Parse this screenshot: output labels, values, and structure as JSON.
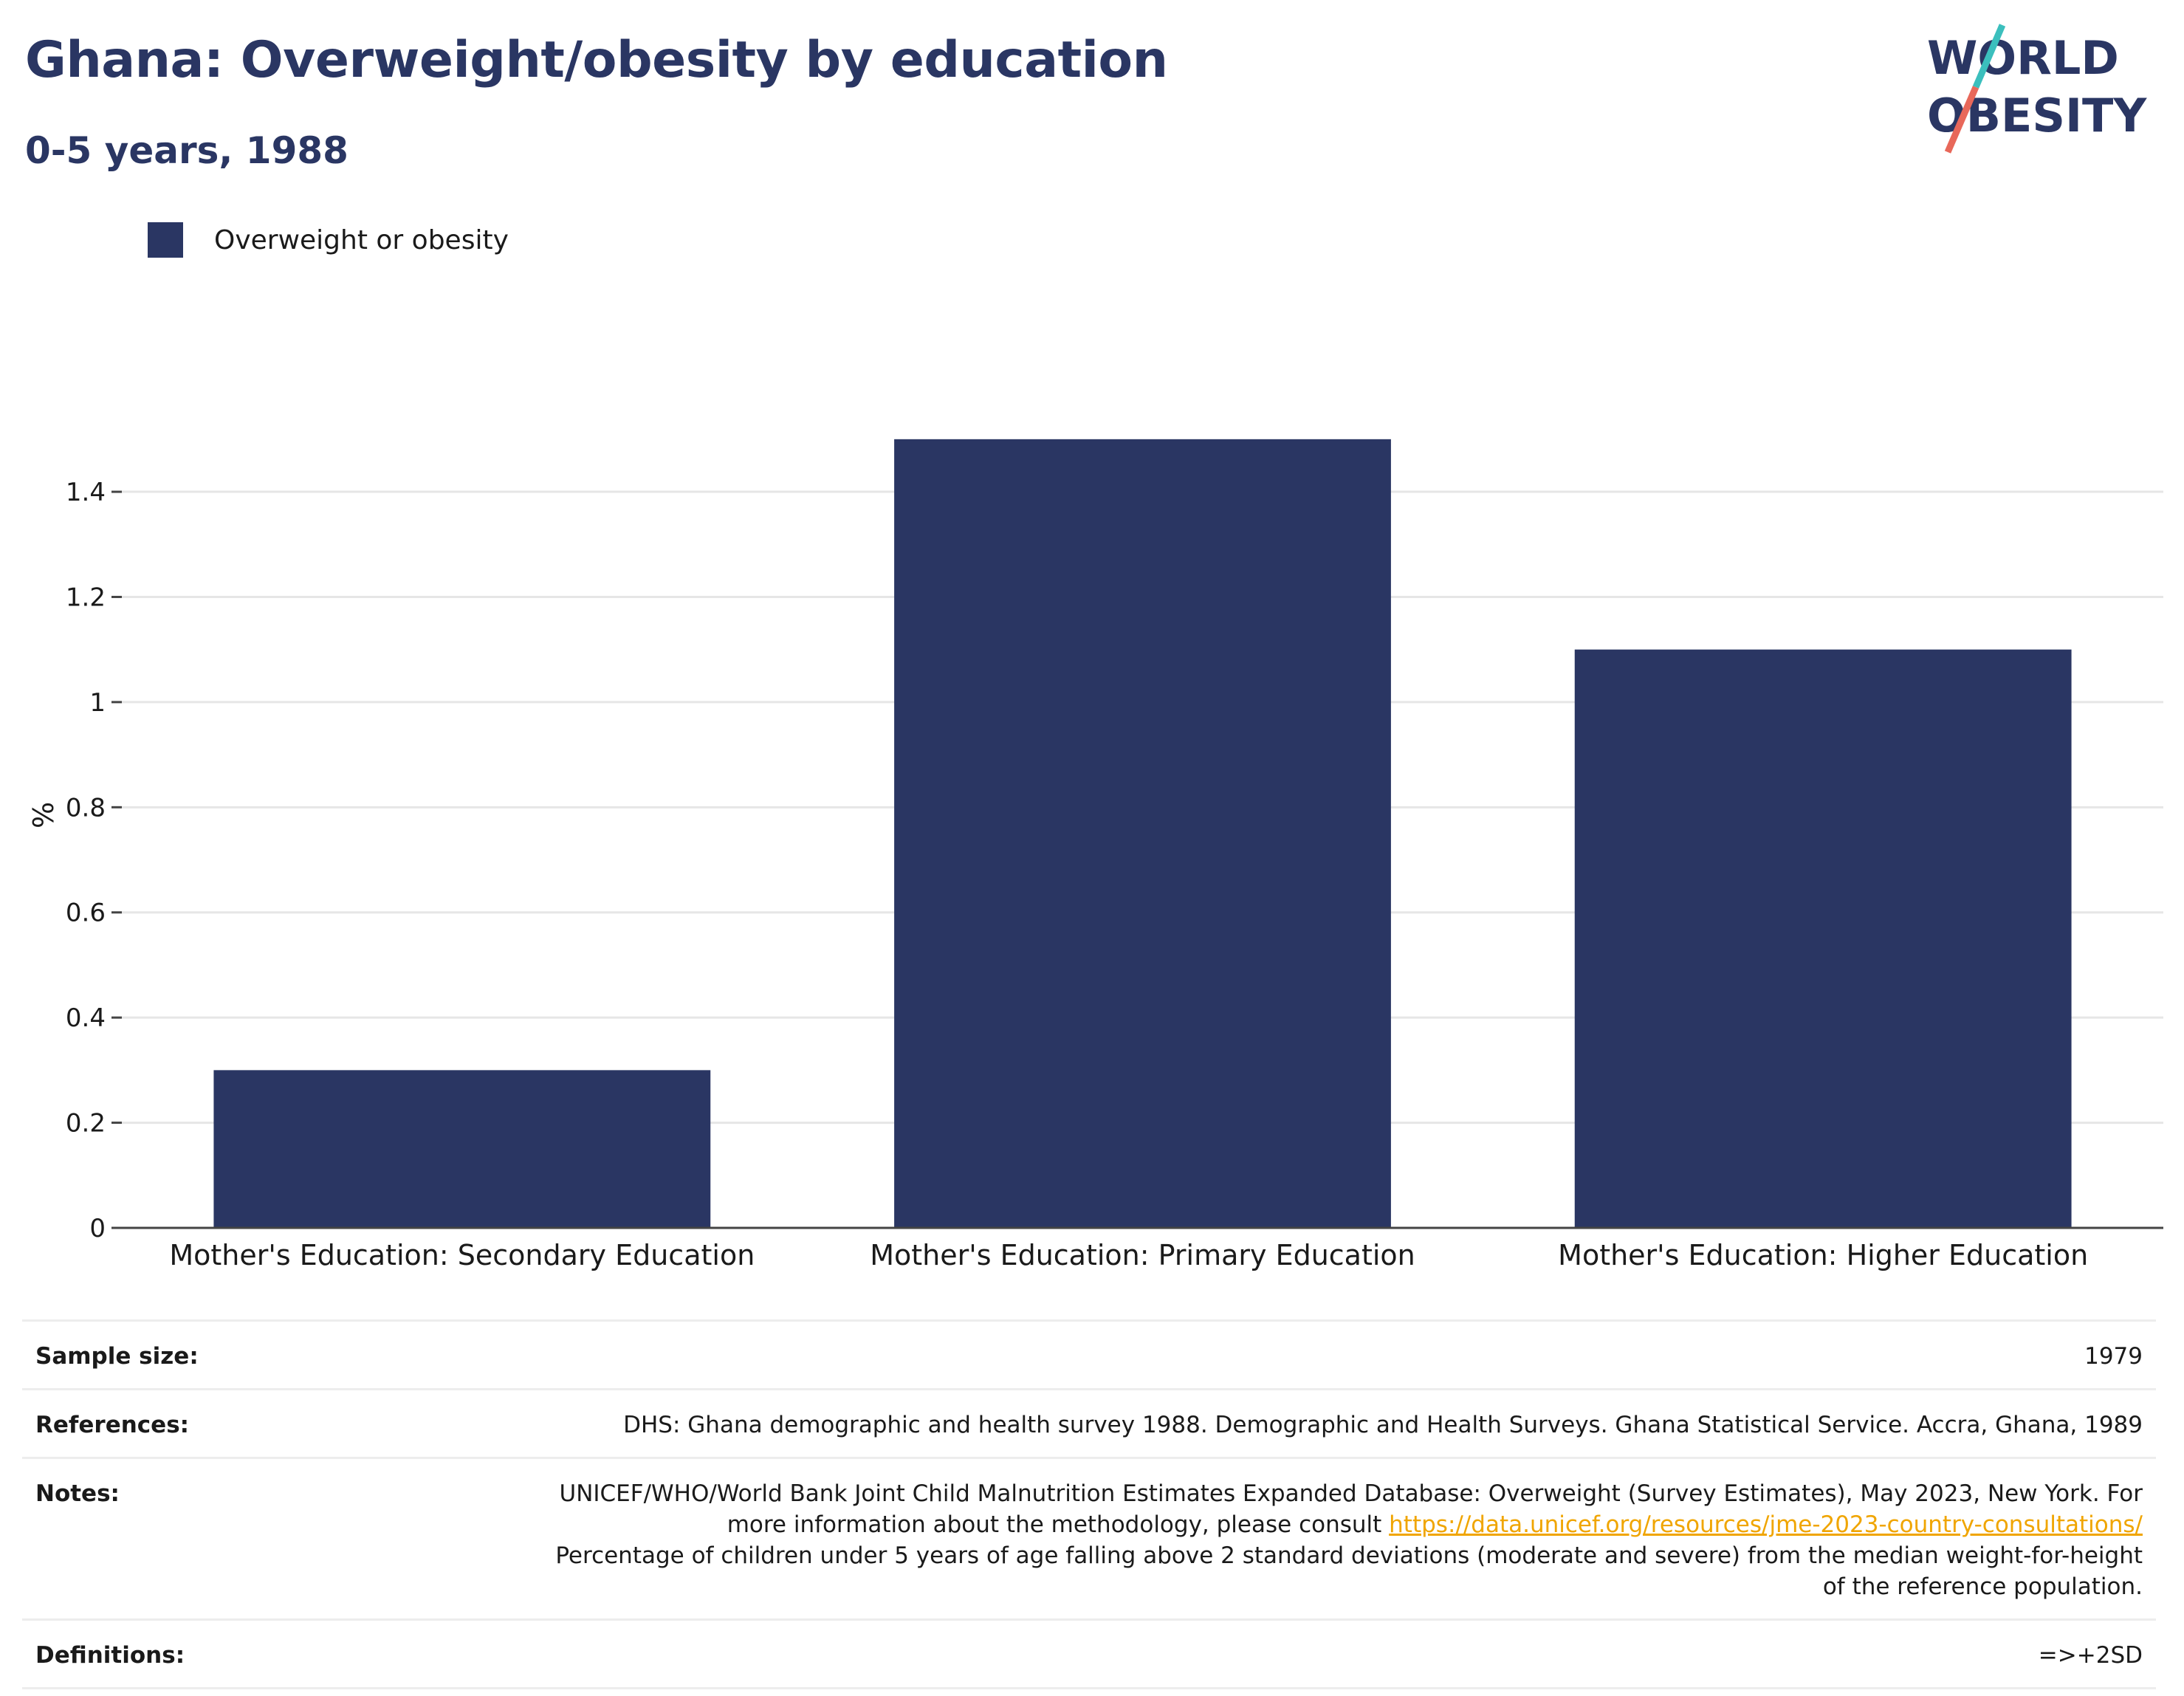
{
  "header": {
    "title": "Ghana: Overweight/obesity by education",
    "subtitle": "0-5 years, 1988"
  },
  "logo": {
    "line1": "WORLD",
    "line2": "OBESITY",
    "colors": {
      "text": "#2a3663",
      "slash_top": "#3bbfbd",
      "slash_bottom": "#e8685a"
    }
  },
  "legend": {
    "label": "Overweight or obesity",
    "color": "#2a3663"
  },
  "chart_data": {
    "type": "bar",
    "categories": [
      "Mother's Education: Secondary Education",
      "Mother's Education: Primary Education",
      "Mother's Education: Higher Education"
    ],
    "series": [
      {
        "name": "Overweight or obesity",
        "values": [
          0.3,
          1.5,
          1.1
        ],
        "color": "#2a3663"
      }
    ],
    "ylabel": "%",
    "ylim": [
      0,
      1.57
    ],
    "yticks": [
      0,
      0.2,
      0.4,
      0.6,
      0.8,
      1,
      1.2,
      1.4
    ],
    "ytick_labels": [
      "0",
      "0.2",
      "0.4",
      "0.6",
      "0.8",
      "1",
      "1.2",
      "1.4"
    ],
    "grid": true,
    "legend_position": "top-left"
  },
  "info": {
    "sample_size_label": "Sample size:",
    "sample_size_value": "1979",
    "references_label": "References:",
    "references_value": "DHS: Ghana demographic and health survey 1988. Demographic and Health Surveys. Ghana Statistical Service. Accra, Ghana, 1989",
    "notes_label": "Notes:",
    "notes_text_1": "UNICEF/WHO/World Bank Joint Child Malnutrition Estimates Expanded Database: Overweight (Survey Estimates), May 2023, New York. For more information about the methodology, please consult ",
    "notes_link": "https://data.unicef.org/resources/jme-2023-country-consultations/",
    "notes_text_2": "Percentage of children under 5 years of age falling above 2 standard deviations (moderate and severe) from the median weight-for-height of the reference population.",
    "definitions_label": "Definitions:",
    "definitions_value": "=>+2SD"
  }
}
